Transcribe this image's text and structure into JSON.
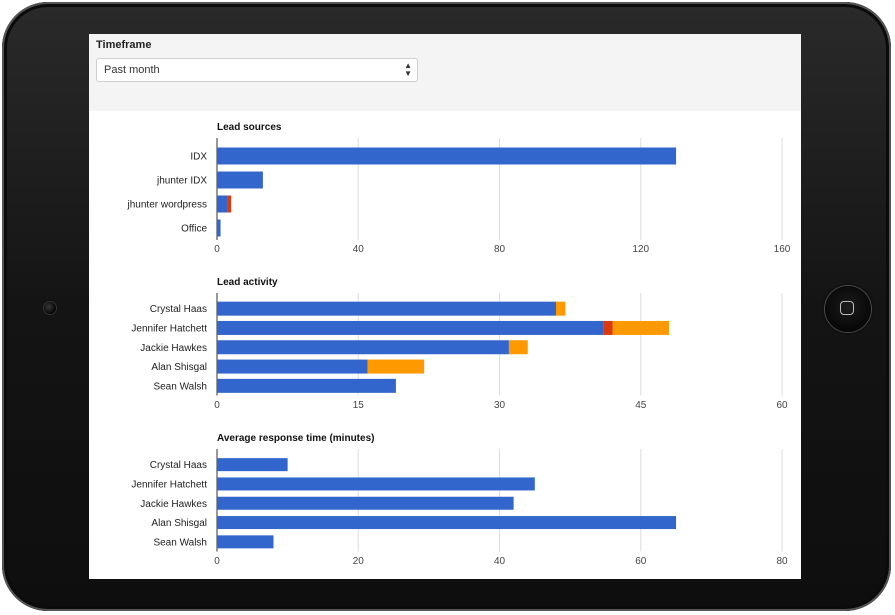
{
  "filter": {
    "label": "Timeframe",
    "selected": "Past month"
  },
  "colors": {
    "series1": "#3366cc",
    "series2": "#dc3912",
    "series3": "#ff9900",
    "grid": "#dddddd"
  },
  "chart_data": [
    {
      "type": "bar",
      "orientation": "horizontal",
      "stacked": true,
      "title": "Lead sources",
      "categories": [
        "IDX",
        "jhunter IDX",
        "jhunter wordpress",
        "Office"
      ],
      "series": [
        {
          "values": [
            130,
            13,
            3,
            1
          ]
        },
        {
          "values": [
            0,
            0,
            1,
            0
          ]
        }
      ],
      "xlim": [
        0,
        160
      ],
      "ticks": [
        0,
        40,
        80,
        120,
        160
      ],
      "grid": true
    },
    {
      "type": "bar",
      "orientation": "horizontal",
      "stacked": true,
      "title": "Lead activity",
      "categories": [
        "Crystal Haas",
        "Jennifer Hatchett",
        "Jackie Hawkes",
        "Alan Shisgal",
        "Sean Walsh"
      ],
      "series": [
        {
          "values": [
            36,
            41,
            31,
            16,
            19
          ]
        },
        {
          "values": [
            0,
            1,
            0,
            0,
            0
          ]
        },
        {
          "values": [
            1,
            6,
            2,
            6,
            0
          ]
        }
      ],
      "xlim": [
        0,
        60
      ],
      "ticks": [
        0,
        15,
        30,
        45,
        60
      ],
      "grid": true
    },
    {
      "type": "bar",
      "orientation": "horizontal",
      "stacked": false,
      "title": "Average response time (minutes)",
      "categories": [
        "Crystal Haas",
        "Jennifer Hatchett",
        "Jackie Hawkes",
        "Alan Shisgal",
        "Sean Walsh"
      ],
      "series": [
        {
          "values": [
            10,
            45,
            42,
            65,
            8
          ]
        }
      ],
      "xlim": [
        0,
        80
      ],
      "ticks": [
        0,
        20,
        40,
        60,
        80
      ],
      "grid": true
    }
  ]
}
